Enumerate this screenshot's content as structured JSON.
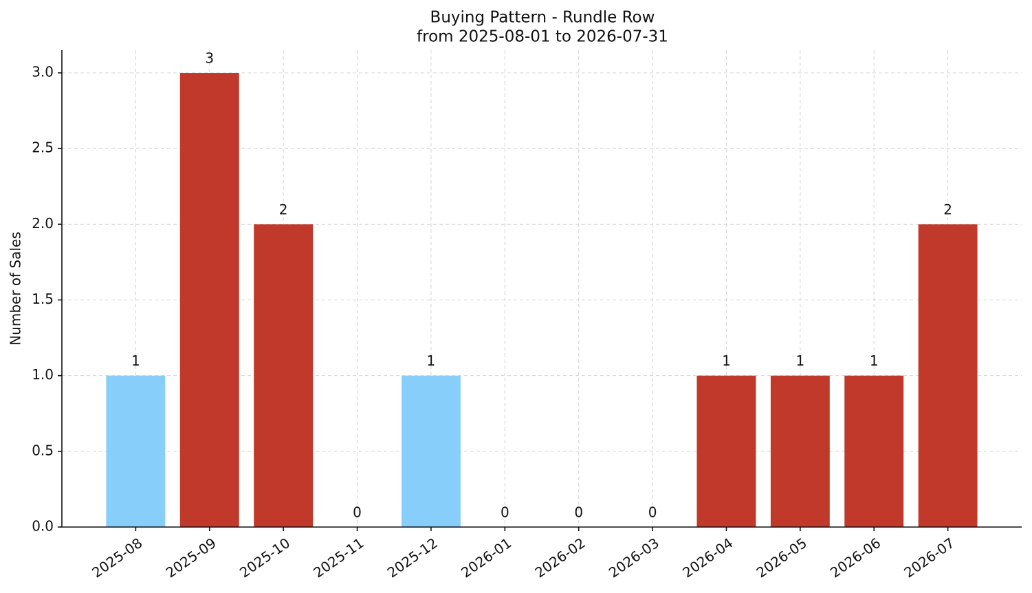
{
  "chart_data": {
    "type": "bar",
    "title": "Buying Pattern - Rundle Row",
    "subtitle": "from 2025-08-01 to 2026-07-31",
    "y_label": "Number of Sales",
    "categories": [
      "2025-08",
      "2025-09",
      "2025-10",
      "2025-11",
      "2025-12",
      "2026-01",
      "2026-02",
      "2026-03",
      "2026-04",
      "2026-05",
      "2026-06",
      "2026-07"
    ],
    "values": [
      1,
      3,
      2,
      0,
      1,
      0,
      0,
      0,
      1,
      1,
      1,
      2
    ],
    "colors": [
      "#87cefa",
      "#c0392b",
      "#c0392b",
      "#c0392b",
      "#87cefa",
      "#c0392b",
      "#c0392b",
      "#c0392b",
      "#c0392b",
      "#c0392b",
      "#c0392b",
      "#c0392b"
    ],
    "ylim": [
      0,
      3.15
    ],
    "yticks": [
      {
        "value": 0,
        "label": "0.0"
      },
      {
        "value": 0.5,
        "label": "0.5"
      },
      {
        "value": 1,
        "label": "1.0"
      },
      {
        "value": 1.5,
        "label": "1.5"
      },
      {
        "value": 2,
        "label": "2.0"
      },
      {
        "value": 2.5,
        "label": "2.5"
      },
      {
        "value": 3,
        "label": "3.0"
      }
    ],
    "grid": true
  }
}
